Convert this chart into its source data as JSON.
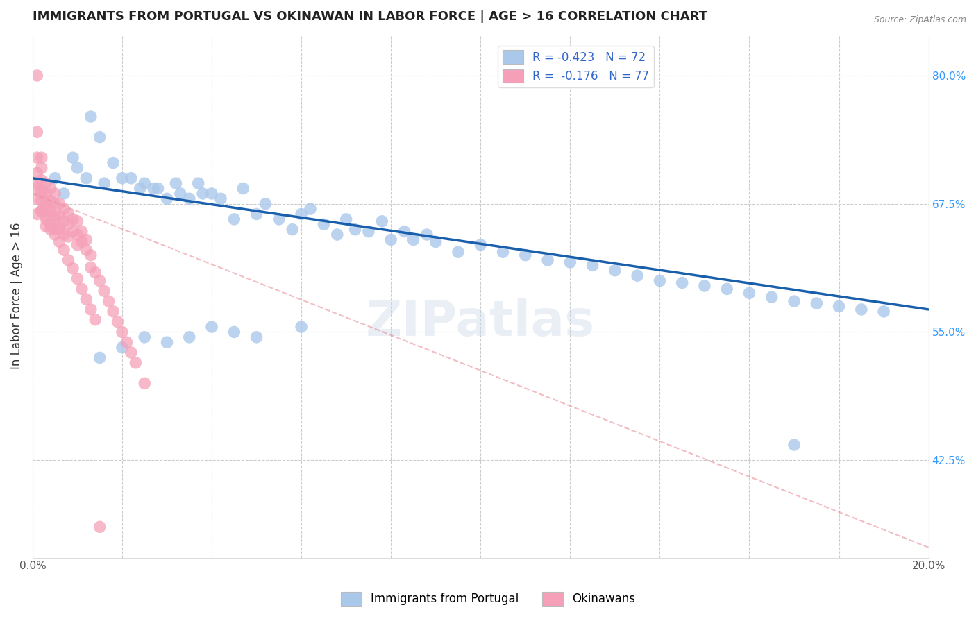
{
  "title": "IMMIGRANTS FROM PORTUGAL VS OKINAWAN IN LABOR FORCE | AGE > 16 CORRELATION CHART",
  "source": "Source: ZipAtlas.com",
  "ylabel": "In Labor Force | Age > 16",
  "xlim": [
    0.0,
    0.2
  ],
  "ylim": [
    0.33,
    0.84
  ],
  "xticks": [
    0.0,
    0.02,
    0.04,
    0.06,
    0.08,
    0.1,
    0.12,
    0.14,
    0.16,
    0.18,
    0.2
  ],
  "right_yticks": [
    0.425,
    0.55,
    0.675,
    0.8
  ],
  "right_yticklabels": [
    "42.5%",
    "55.0%",
    "67.5%",
    "80.0%"
  ],
  "legend_blue_label": "Immigrants from Portugal",
  "legend_pink_label": "Okinawans",
  "legend_blue_r": "R = -0.423",
  "legend_blue_n": "N = 72",
  "legend_pink_r": "R =  -0.176",
  "legend_pink_n": "N = 77",
  "blue_color": "#aac8ea",
  "pink_color": "#f5a0b8",
  "blue_line_color": "#1a5fac",
  "pink_line_color": "#e8909a",
  "watermark": "ZIPatlas",
  "blue_scatter_x": [
    0.005,
    0.007,
    0.009,
    0.01,
    0.012,
    0.013,
    0.015,
    0.016,
    0.018,
    0.02,
    0.022,
    0.024,
    0.025,
    0.027,
    0.028,
    0.03,
    0.032,
    0.033,
    0.035,
    0.037,
    0.038,
    0.04,
    0.042,
    0.045,
    0.047,
    0.05,
    0.052,
    0.055,
    0.058,
    0.06,
    0.062,
    0.065,
    0.068,
    0.07,
    0.072,
    0.075,
    0.078,
    0.08,
    0.083,
    0.085,
    0.088,
    0.09,
    0.095,
    0.1,
    0.105,
    0.11,
    0.115,
    0.12,
    0.125,
    0.13,
    0.135,
    0.14,
    0.145,
    0.15,
    0.155,
    0.16,
    0.165,
    0.17,
    0.175,
    0.18,
    0.185,
    0.19,
    0.015,
    0.02,
    0.025,
    0.03,
    0.035,
    0.04,
    0.045,
    0.05,
    0.06,
    0.17
  ],
  "blue_scatter_y": [
    0.7,
    0.685,
    0.72,
    0.71,
    0.7,
    0.76,
    0.74,
    0.695,
    0.715,
    0.7,
    0.7,
    0.69,
    0.695,
    0.69,
    0.69,
    0.68,
    0.695,
    0.685,
    0.68,
    0.695,
    0.685,
    0.685,
    0.68,
    0.66,
    0.69,
    0.665,
    0.675,
    0.66,
    0.65,
    0.665,
    0.67,
    0.655,
    0.645,
    0.66,
    0.65,
    0.648,
    0.658,
    0.64,
    0.648,
    0.64,
    0.645,
    0.638,
    0.628,
    0.635,
    0.628,
    0.625,
    0.62,
    0.618,
    0.615,
    0.61,
    0.605,
    0.6,
    0.598,
    0.595,
    0.592,
    0.588,
    0.584,
    0.58,
    0.578,
    0.575,
    0.572,
    0.57,
    0.525,
    0.535,
    0.545,
    0.54,
    0.545,
    0.555,
    0.55,
    0.545,
    0.555,
    0.44
  ],
  "pink_scatter_x": [
    0.001,
    0.001,
    0.001,
    0.001,
    0.001,
    0.002,
    0.002,
    0.002,
    0.002,
    0.002,
    0.002,
    0.003,
    0.003,
    0.003,
    0.003,
    0.003,
    0.004,
    0.004,
    0.004,
    0.004,
    0.005,
    0.005,
    0.005,
    0.005,
    0.006,
    0.006,
    0.006,
    0.007,
    0.007,
    0.007,
    0.008,
    0.008,
    0.008,
    0.009,
    0.009,
    0.01,
    0.01,
    0.01,
    0.011,
    0.011,
    0.012,
    0.012,
    0.013,
    0.013,
    0.014,
    0.015,
    0.016,
    0.017,
    0.018,
    0.019,
    0.02,
    0.021,
    0.022,
    0.023,
    0.025,
    0.001,
    0.001,
    0.001,
    0.002,
    0.002,
    0.003,
    0.003,
    0.004,
    0.004,
    0.005,
    0.005,
    0.006,
    0.006,
    0.007,
    0.008,
    0.009,
    0.01,
    0.011,
    0.012,
    0.013,
    0.014,
    0.015
  ],
  "pink_scatter_y": [
    0.8,
    0.745,
    0.72,
    0.705,
    0.69,
    0.72,
    0.71,
    0.698,
    0.688,
    0.678,
    0.668,
    0.695,
    0.685,
    0.673,
    0.663,
    0.653,
    0.69,
    0.678,
    0.668,
    0.655,
    0.685,
    0.675,
    0.663,
    0.65,
    0.675,
    0.663,
    0.65,
    0.67,
    0.658,
    0.645,
    0.665,
    0.655,
    0.643,
    0.66,
    0.648,
    0.658,
    0.645,
    0.635,
    0.648,
    0.638,
    0.64,
    0.63,
    0.625,
    0.613,
    0.608,
    0.6,
    0.59,
    0.58,
    0.57,
    0.56,
    0.55,
    0.54,
    0.53,
    0.52,
    0.5,
    0.695,
    0.68,
    0.665,
    0.685,
    0.668,
    0.678,
    0.66,
    0.668,
    0.65,
    0.66,
    0.645,
    0.652,
    0.638,
    0.63,
    0.62,
    0.612,
    0.602,
    0.592,
    0.582,
    0.572,
    0.562,
    0.36
  ],
  "blue_trend_x": [
    0.0,
    0.2
  ],
  "blue_trend_y": [
    0.7,
    0.572
  ],
  "pink_trend_x": [
    0.0,
    0.2
  ],
  "pink_trend_y": [
    0.685,
    0.34
  ]
}
